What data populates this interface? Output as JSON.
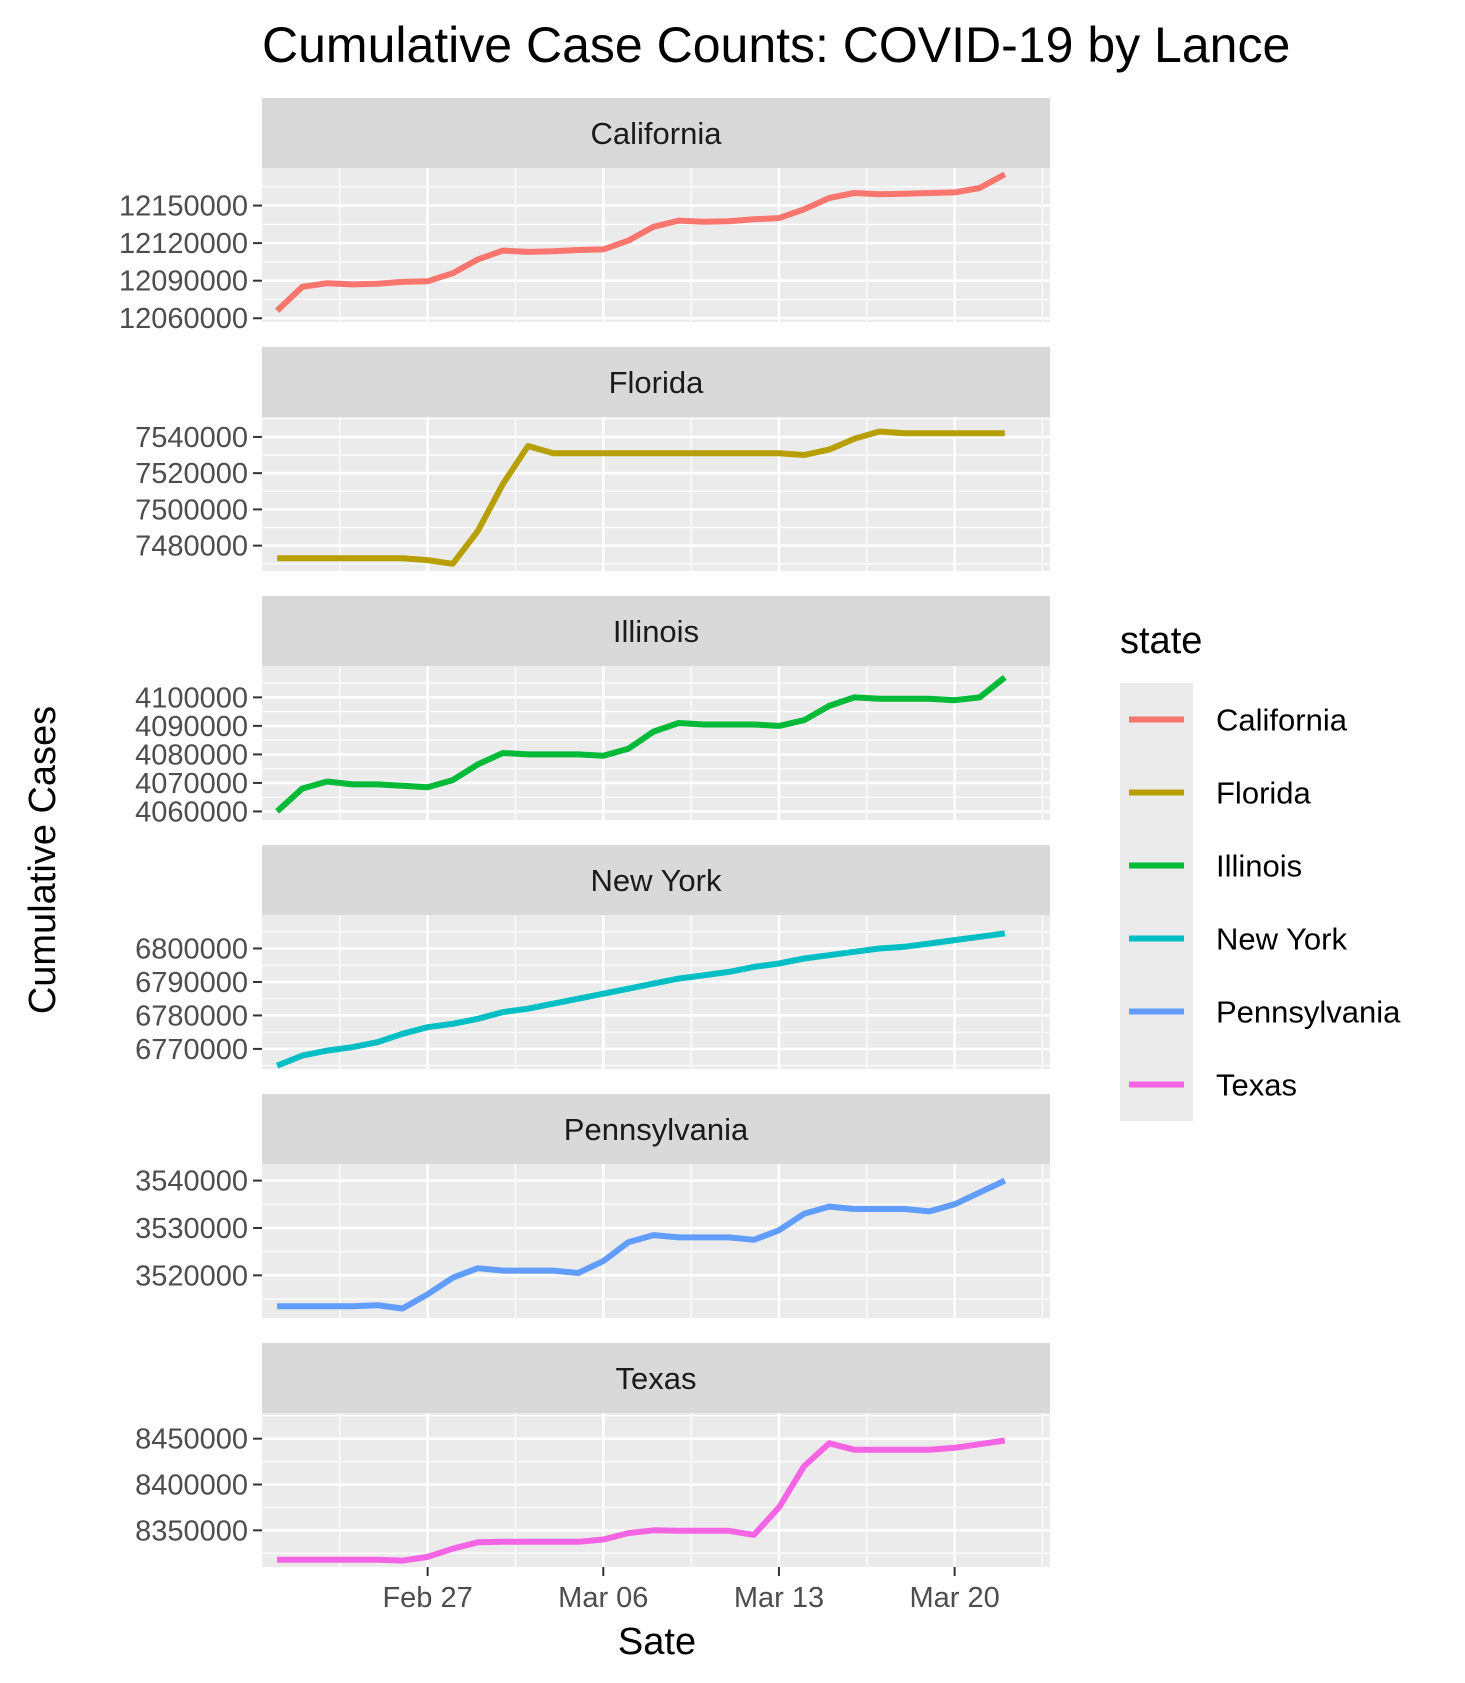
{
  "chart_data": {
    "type": "line",
    "title": "Cumulative Case Counts: COVID-19 by Lance",
    "xlabel": "Sate",
    "ylabel": "Cumulative Cases",
    "x_ticks": [
      "Feb 27",
      "Mar 06",
      "Mar 13",
      "Mar 20"
    ],
    "x_tick_days": [
      6,
      13,
      20,
      27
    ],
    "x_dates": [
      "Feb 22",
      "Feb 23",
      "Feb 24",
      "Feb 25",
      "Feb 26",
      "Feb 27",
      "Feb 28",
      "Mar 01",
      "Mar 02",
      "Mar 03",
      "Mar 04",
      "Mar 05",
      "Mar 06",
      "Mar 07",
      "Mar 08",
      "Mar 09",
      "Mar 10",
      "Mar 11",
      "Mar 12",
      "Mar 13",
      "Mar 14",
      "Mar 15",
      "Mar 16",
      "Mar 17",
      "Mar 18",
      "Mar 19",
      "Mar 20",
      "Mar 21",
      "Mar 22",
      "Mar 23"
    ],
    "xlim_days": [
      -0.6,
      30.8
    ],
    "legend": {
      "title": "state",
      "position": "right"
    },
    "grid": true,
    "facets": [
      {
        "name": "California",
        "color": "#F8766D",
        "yticks": [
          12060000,
          12090000,
          12120000,
          12150000
        ],
        "ylim": [
          12057000,
          12180000
        ],
        "values": [
          12066000,
          12085000,
          12088000,
          12087000,
          12087500,
          12089000,
          12089500,
          12096000,
          12107000,
          12114000,
          12113000,
          12113500,
          12114500,
          12115000,
          12122000,
          12133000,
          12138000,
          12137000,
          12137500,
          12139000,
          12140000,
          12147000,
          12156000,
          12160000,
          12159000,
          12159500,
          12160000,
          12160500,
          12164000,
          12175000
        ]
      },
      {
        "name": "Florida",
        "color": "#B79F00",
        "yticks": [
          7480000,
          7500000,
          7520000,
          7540000
        ],
        "ylim": [
          7466000,
          7551000
        ],
        "values": [
          7473000,
          7473000,
          7473000,
          7473000,
          7473000,
          7473000,
          7472000,
          7470000,
          7488000,
          7514000,
          7535000,
          7531000,
          7531000,
          7531000,
          7531000,
          7531000,
          7531000,
          7531000,
          7531000,
          7531000,
          7531000,
          7530000,
          7533000,
          7539000,
          7543000,
          7542000,
          7542000,
          7542000,
          7542000,
          7542000
        ]
      },
      {
        "name": "Illinois",
        "color": "#00BA38",
        "yticks": [
          4060000,
          4070000,
          4080000,
          4090000,
          4100000
        ],
        "ylim": [
          4057000,
          4111000
        ],
        "values": [
          4060000,
          4068000,
          4070500,
          4069500,
          4069500,
          4069000,
          4068500,
          4071000,
          4076500,
          4080500,
          4080000,
          4080000,
          4080000,
          4079500,
          4082000,
          4088000,
          4091000,
          4090500,
          4090500,
          4090500,
          4090000,
          4092000,
          4097000,
          4100000,
          4099500,
          4099500,
          4099500,
          4099000,
          4100000,
          4107000
        ]
      },
      {
        "name": "New York",
        "color": "#00BFC4",
        "yticks": [
          6770000,
          6780000,
          6790000,
          6800000
        ],
        "ylim": [
          6764000,
          6810000
        ],
        "values": [
          6765000,
          6768000,
          6769500,
          6770500,
          6772000,
          6774500,
          6776500,
          6777500,
          6779000,
          6781000,
          6782000,
          6783500,
          6785000,
          6786500,
          6788000,
          6789500,
          6791000,
          6792000,
          6793000,
          6794500,
          6795500,
          6797000,
          6798000,
          6799000,
          6800000,
          6800500,
          6801500,
          6802500,
          6803500,
          6804500
        ]
      },
      {
        "name": "Pennsylvania",
        "color": "#619CFF",
        "yticks": [
          3520000,
          3530000,
          3540000
        ],
        "ylim": [
          3511000,
          3543500
        ],
        "values": [
          3513500,
          3513500,
          3513500,
          3513500,
          3513700,
          3513000,
          3516000,
          3519500,
          3521500,
          3521000,
          3521000,
          3521000,
          3520500,
          3523000,
          3527000,
          3528500,
          3528000,
          3528000,
          3528000,
          3527500,
          3529500,
          3533000,
          3534500,
          3534000,
          3534000,
          3534000,
          3533500,
          3535000,
          3537500,
          3540000
        ]
      },
      {
        "name": "Texas",
        "color": "#F564E3",
        "yticks": [
          8350000,
          8400000,
          8450000
        ],
        "ylim": [
          8310000,
          8478000
        ],
        "values": [
          8318000,
          8318000,
          8318000,
          8318000,
          8318000,
          8317000,
          8321000,
          8330000,
          8337000,
          8337500,
          8337500,
          8337500,
          8337500,
          8340000,
          8347000,
          8350000,
          8349500,
          8349500,
          8349500,
          8345000,
          8375000,
          8420000,
          8445000,
          8438000,
          8438000,
          8438000,
          8438000,
          8440000,
          8444000,
          8448000
        ]
      }
    ]
  }
}
